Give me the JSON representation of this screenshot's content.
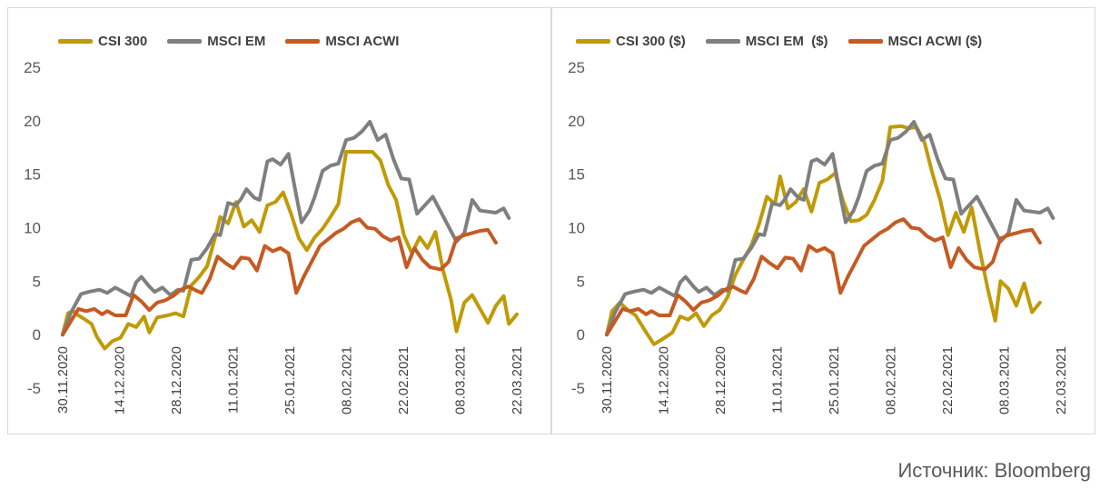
{
  "source_text": "Источник: Bloomberg",
  "chart_data": [
    {
      "type": "line",
      "ylim": [
        -5,
        25
      ],
      "yticks": [
        -5,
        0,
        5,
        10,
        15,
        20,
        25
      ],
      "grid": false,
      "legend_position": "top",
      "x_labels": [
        "30.11.2020",
        "14.12.2020",
        "28.12.2020",
        "11.01.2021",
        "25.01.2021",
        "08.02.2021",
        "22.02.2021",
        "08.03.2021",
        "22.03.2021"
      ],
      "series": [
        {
          "name": "CSI 300",
          "color": "#c09a07",
          "values": [
            0,
            2,
            2.2,
            1.8,
            1.5,
            1.0,
            -0.2,
            -1.3,
            -0.6,
            -0.3,
            1.0,
            0.7,
            1.7,
            0.2,
            1.6,
            1.8,
            2.0,
            1.7,
            4.6,
            5.4,
            6.4,
            9.0,
            11.0,
            10.4,
            12.4,
            10.1,
            10.7,
            9.6,
            12.1,
            12.4,
            13.3,
            11.3,
            9.0,
            7.9,
            9.1,
            9.9,
            11.0,
            12.2,
            17.1,
            17.1,
            17.1,
            17.1,
            16.3,
            14.0,
            12.6,
            9.3,
            7.6,
            9.1,
            8.1,
            9.6,
            5.9,
            3.2,
            0.3,
            3.0,
            3.7,
            2.4,
            1.1,
            2.7,
            3.6,
            1.0,
            1.9
          ],
          "x_fractions": [
            0,
            0.008,
            0.016,
            0.024,
            0.032,
            0.044,
            0.052,
            0.064,
            0.076,
            0.088,
            0.1,
            0.112,
            0.124,
            0.132,
            0.144,
            0.16,
            0.172,
            0.184,
            0.196,
            0.208,
            0.22,
            0.232,
            0.24,
            0.252,
            0.264,
            0.276,
            0.288,
            0.3,
            0.312,
            0.324,
            0.336,
            0.348,
            0.36,
            0.372,
            0.384,
            0.396,
            0.408,
            0.42,
            0.432,
            0.448,
            0.46,
            0.472,
            0.484,
            0.496,
            0.508,
            0.52,
            0.532,
            0.544,
            0.556,
            0.568,
            0.58,
            0.592,
            0.6,
            0.612,
            0.624,
            0.636,
            0.648,
            0.66,
            0.672,
            0.68,
            0.692
          ]
        },
        {
          "name": "MSCI EM",
          "color": "#7f7f7f",
          "values": [
            0,
            2.0,
            3.8,
            4.0,
            4.2,
            3.9,
            4.4,
            4.0,
            3.6,
            4.9,
            5.4,
            4.5,
            4.0,
            4.4,
            3.7,
            4.2,
            4.1,
            7.0,
            7.1,
            8.1,
            9.4,
            9.3,
            12.3,
            12.1,
            12.7,
            13.6,
            12.8,
            12.6,
            16.2,
            16.4,
            15.9,
            16.9,
            13.0,
            10.5,
            11.6,
            12.9,
            15.3,
            15.8,
            16.0,
            18.2,
            18.4,
            19.0,
            19.9,
            18.2,
            18.7,
            16.4,
            14.6,
            14.5,
            11.3,
            12.1,
            12.9,
            11.5,
            8.7,
            9.5,
            12.6,
            11.6,
            11.5,
            11.4,
            11.8,
            10.9
          ],
          "x_fractions": [
            0,
            0.012,
            0.028,
            0.04,
            0.056,
            0.068,
            0.08,
            0.092,
            0.104,
            0.112,
            0.12,
            0.132,
            0.14,
            0.152,
            0.164,
            0.176,
            0.184,
            0.196,
            0.208,
            0.22,
            0.232,
            0.24,
            0.252,
            0.264,
            0.272,
            0.28,
            0.292,
            0.3,
            0.312,
            0.32,
            0.332,
            0.344,
            0.356,
            0.364,
            0.376,
            0.384,
            0.396,
            0.408,
            0.42,
            0.432,
            0.444,
            0.456,
            0.468,
            0.48,
            0.492,
            0.504,
            0.516,
            0.528,
            0.54,
            0.552,
            0.564,
            0.576,
            0.6,
            0.612,
            0.624,
            0.636,
            0.648,
            0.66,
            0.672,
            0.68
          ]
        },
        {
          "name": "MSCI ACWI",
          "color": "#c55a23",
          "values": [
            0,
            1.2,
            2.4,
            2.2,
            2.4,
            1.9,
            2.2,
            1.8,
            1.8,
            3.7,
            3.1,
            2.3,
            3.0,
            3.2,
            3.6,
            4.2,
            4.5,
            4.1,
            3.9,
            5.2,
            7.3,
            6.7,
            6.2,
            7.2,
            7.1,
            6.0,
            8.3,
            7.8,
            8.1,
            7.6,
            3.9,
            5.5,
            6.9,
            8.3,
            8.9,
            9.5,
            9.9,
            10.5,
            10.8,
            10.0,
            9.9,
            9.2,
            8.8,
            9.1,
            6.3,
            8.1,
            7.0,
            6.3,
            6.1,
            6.8,
            9.0,
            9.3,
            9.5,
            9.7,
            9.8,
            8.6
          ],
          "x_fractions": [
            0,
            0.012,
            0.024,
            0.036,
            0.048,
            0.06,
            0.068,
            0.08,
            0.096,
            0.108,
            0.12,
            0.132,
            0.144,
            0.156,
            0.168,
            0.18,
            0.192,
            0.204,
            0.212,
            0.224,
            0.236,
            0.248,
            0.26,
            0.272,
            0.284,
            0.296,
            0.308,
            0.32,
            0.332,
            0.344,
            0.356,
            0.368,
            0.38,
            0.392,
            0.404,
            0.416,
            0.428,
            0.44,
            0.452,
            0.464,
            0.476,
            0.488,
            0.5,
            0.512,
            0.524,
            0.536,
            0.548,
            0.56,
            0.576,
            0.588,
            0.6,
            0.612,
            0.624,
            0.636,
            0.648,
            0.66
          ]
        }
      ]
    },
    {
      "type": "line",
      "ylim": [
        -5,
        25
      ],
      "yticks": [
        -5,
        0,
        5,
        10,
        15,
        20,
        25
      ],
      "grid": false,
      "legend_position": "top",
      "x_labels": [
        "30.11.2020",
        "14.12.2020",
        "28.12.2020",
        "11.01.2021",
        "25.01.2021",
        "08.02.2021",
        "22.02.2021",
        "08.03.2021",
        "22.03.2021"
      ],
      "series": [
        {
          "name": "CSI 300 ($)",
          "color": "#c09a07",
          "values": [
            0,
            2.2,
            3.0,
            2.3,
            1.8,
            0.2,
            -0.9,
            -0.3,
            0.2,
            1.7,
            1.4,
            2.0,
            0.8,
            1.8,
            2.3,
            3.5,
            5.6,
            7.0,
            8.3,
            10.3,
            12.9,
            12.2,
            14.8,
            11.8,
            12.4,
            13.6,
            11.5,
            14.2,
            14.5,
            15.1,
            12.5,
            10.6,
            10.7,
            11.2,
            12.6,
            14.4,
            19.4,
            19.5,
            19.3,
            19.4,
            18.0,
            15.1,
            12.6,
            9.3,
            11.4,
            9.6,
            11.9,
            8.0,
            4.4,
            1.3,
            5.0,
            4.3,
            2.7,
            4.8,
            2.1,
            3.0
          ],
          "x_fractions": [
            0,
            0.008,
            0.02,
            0.032,
            0.044,
            0.06,
            0.072,
            0.088,
            0.1,
            0.112,
            0.124,
            0.136,
            0.148,
            0.16,
            0.172,
            0.184,
            0.196,
            0.208,
            0.22,
            0.232,
            0.244,
            0.256,
            0.264,
            0.276,
            0.288,
            0.3,
            0.312,
            0.324,
            0.336,
            0.348,
            0.36,
            0.372,
            0.384,
            0.396,
            0.408,
            0.42,
            0.432,
            0.448,
            0.46,
            0.472,
            0.484,
            0.496,
            0.508,
            0.52,
            0.532,
            0.544,
            0.556,
            0.568,
            0.58,
            0.592,
            0.6,
            0.612,
            0.624,
            0.636,
            0.648,
            0.66
          ]
        },
        {
          "name": "MSCI EM  ($)",
          "color": "#7f7f7f",
          "values": [
            0,
            2.0,
            3.8,
            4.0,
            4.2,
            3.9,
            4.4,
            4.0,
            3.6,
            4.9,
            5.4,
            4.5,
            4.0,
            4.4,
            3.7,
            4.2,
            4.1,
            7.0,
            7.1,
            8.1,
            9.4,
            9.3,
            12.3,
            12.1,
            12.7,
            13.6,
            12.8,
            12.6,
            16.2,
            16.4,
            15.9,
            16.9,
            13.0,
            10.5,
            11.6,
            12.9,
            15.3,
            15.8,
            16.0,
            18.2,
            18.4,
            19.0,
            19.9,
            18.2,
            18.7,
            16.4,
            14.6,
            14.5,
            11.3,
            12.1,
            12.9,
            11.5,
            8.7,
            9.5,
            12.6,
            11.6,
            11.5,
            11.4,
            11.8,
            10.9
          ],
          "x_fractions": [
            0,
            0.012,
            0.028,
            0.04,
            0.056,
            0.068,
            0.08,
            0.092,
            0.104,
            0.112,
            0.12,
            0.132,
            0.14,
            0.152,
            0.164,
            0.176,
            0.184,
            0.196,
            0.208,
            0.22,
            0.232,
            0.24,
            0.252,
            0.264,
            0.272,
            0.28,
            0.292,
            0.3,
            0.312,
            0.32,
            0.332,
            0.344,
            0.356,
            0.364,
            0.376,
            0.384,
            0.396,
            0.408,
            0.42,
            0.432,
            0.444,
            0.456,
            0.468,
            0.48,
            0.492,
            0.504,
            0.516,
            0.528,
            0.54,
            0.552,
            0.564,
            0.576,
            0.6,
            0.612,
            0.624,
            0.636,
            0.648,
            0.66,
            0.672,
            0.68
          ]
        },
        {
          "name": "MSCI ACWI ($)",
          "color": "#c55a23",
          "values": [
            0,
            1.2,
            2.4,
            2.2,
            2.4,
            1.9,
            2.2,
            1.8,
            1.8,
            3.7,
            3.1,
            2.3,
            3.0,
            3.2,
            3.6,
            4.2,
            4.5,
            4.1,
            3.9,
            5.2,
            7.3,
            6.7,
            6.2,
            7.2,
            7.1,
            6.0,
            8.3,
            7.8,
            8.1,
            7.6,
            3.9,
            5.5,
            6.9,
            8.3,
            8.9,
            9.5,
            9.9,
            10.5,
            10.8,
            10.0,
            9.9,
            9.2,
            8.8,
            9.1,
            6.3,
            8.1,
            7.0,
            6.3,
            6.1,
            6.8,
            9.0,
            9.3,
            9.5,
            9.7,
            9.8,
            8.6
          ],
          "x_fractions": [
            0,
            0.012,
            0.024,
            0.036,
            0.048,
            0.06,
            0.068,
            0.08,
            0.096,
            0.108,
            0.12,
            0.132,
            0.144,
            0.156,
            0.168,
            0.18,
            0.192,
            0.204,
            0.212,
            0.224,
            0.236,
            0.248,
            0.26,
            0.272,
            0.284,
            0.296,
            0.308,
            0.32,
            0.332,
            0.344,
            0.356,
            0.368,
            0.38,
            0.392,
            0.404,
            0.416,
            0.428,
            0.44,
            0.452,
            0.464,
            0.476,
            0.488,
            0.5,
            0.512,
            0.524,
            0.536,
            0.548,
            0.56,
            0.576,
            0.588,
            0.6,
            0.612,
            0.624,
            0.636,
            0.648,
            0.66
          ]
        }
      ]
    }
  ]
}
